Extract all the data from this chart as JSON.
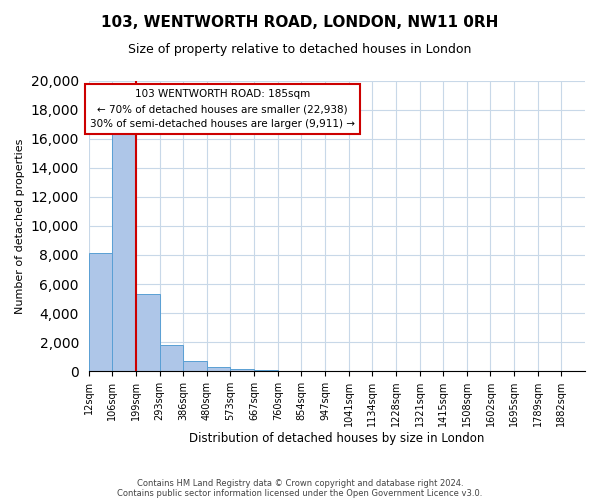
{
  "title": "103, WENTWORTH ROAD, LONDON, NW11 0RH",
  "subtitle": "Size of property relative to detached houses in London",
  "xlabel": "Distribution of detached houses by size in London",
  "ylabel": "Number of detached properties",
  "bar_color": "#aec6e8",
  "bar_edge_color": "#5a9fd4",
  "grid_color": "#c8d8e8",
  "bin_labels": [
    "12sqm",
    "106sqm",
    "199sqm",
    "293sqm",
    "386sqm",
    "480sqm",
    "573sqm",
    "667sqm",
    "760sqm",
    "854sqm",
    "947sqm",
    "1041sqm",
    "1134sqm",
    "1228sqm",
    "1321sqm",
    "1415sqm",
    "1508sqm",
    "1602sqm",
    "1695sqm",
    "1789sqm",
    "1882sqm"
  ],
  "bar_heights": [
    8100,
    16500,
    5300,
    1800,
    700,
    300,
    150,
    100,
    0,
    0,
    0,
    0,
    0,
    0,
    0,
    0,
    0,
    0,
    0,
    0
  ],
  "red_line_x": 2,
  "ylim": [
    0,
    20000
  ],
  "yticks": [
    0,
    2000,
    4000,
    6000,
    8000,
    10000,
    12000,
    14000,
    16000,
    18000,
    20000
  ],
  "annotation_title": "103 WENTWORTH ROAD: 185sqm",
  "annotation_line1": "← 70% of detached houses are smaller (22,938)",
  "annotation_line2": "30% of semi-detached houses are larger (9,911) →",
  "footer_line1": "Contains HM Land Registry data © Crown copyright and database right 2024.",
  "footer_line2": "Contains public sector information licensed under the Open Government Licence v3.0.",
  "annotation_box_color": "#ffffff",
  "annotation_box_edge": "#cc0000",
  "red_line_color": "#cc0000",
  "background_color": "#ffffff"
}
